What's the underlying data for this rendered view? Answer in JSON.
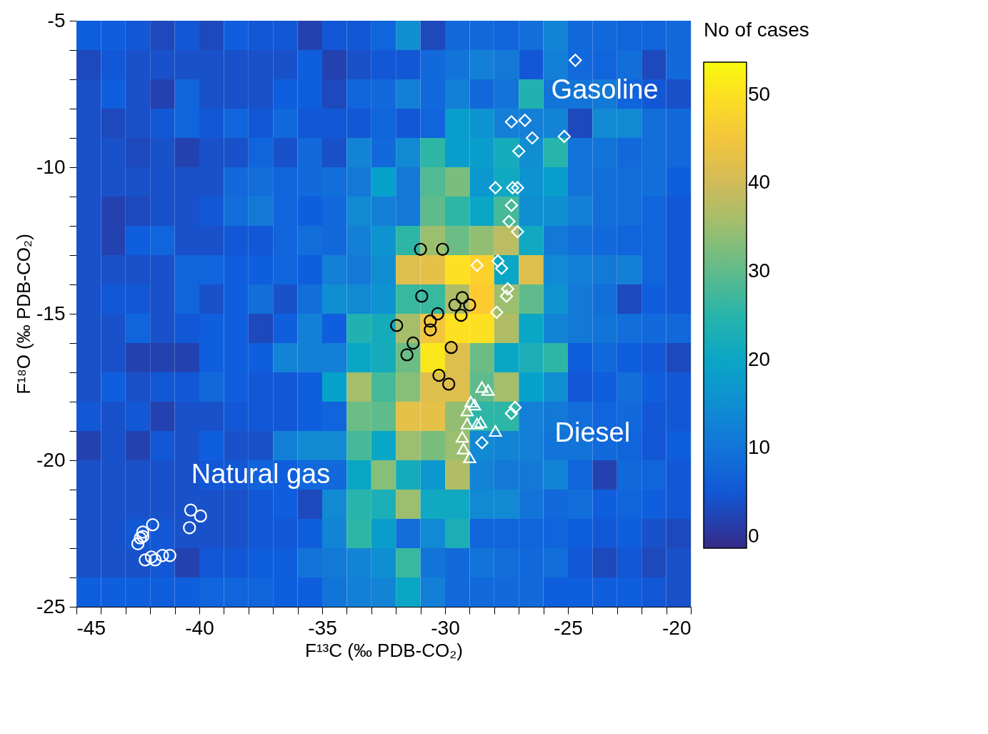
{
  "chart_data": {
    "type": "heatmap",
    "xlabel": "F¹³C (‰ PDB-CO₂)",
    "ylabel": "F¹⁸O (‰ PDB-CO₂)",
    "clabel": "No of cases",
    "xlim": [
      -45,
      -20
    ],
    "ylim": [
      -25,
      -5
    ],
    "xticks": [
      -45,
      {
        "value": -44,
        "label": null
      },
      {
        "value": -43,
        "label": null
      },
      {
        "value": -42,
        "label": null
      },
      {
        "value": -41,
        "label": null
      },
      -40,
      {
        "value": -39,
        "label": null
      },
      {
        "value": -38,
        "label": null
      },
      {
        "value": -37,
        "label": null
      },
      {
        "value": -36,
        "label": null
      },
      -35,
      {
        "value": -34,
        "label": null
      },
      {
        "value": -33,
        "label": null
      },
      {
        "value": -32,
        "label": null
      },
      {
        "value": -31,
        "label": null
      },
      -30,
      {
        "value": -29,
        "label": null
      },
      {
        "value": -28,
        "label": null
      },
      {
        "value": -27,
        "label": null
      },
      {
        "value": -26,
        "label": null
      },
      -25,
      {
        "value": -24,
        "label": null
      },
      {
        "value": -23,
        "label": null
      },
      {
        "value": -22,
        "label": null
      },
      {
        "value": -21,
        "label": null
      },
      -20
    ],
    "yticks": [
      -25,
      {
        "value": -24,
        "label": null
      },
      {
        "value": -23,
        "label": null
      },
      {
        "value": -22,
        "label": null
      },
      {
        "value": -21,
        "label": null
      },
      -20,
      {
        "value": -19,
        "label": null
      },
      {
        "value": -18,
        "label": null
      },
      {
        "value": -17,
        "label": null
      },
      {
        "value": -16,
        "label": null
      },
      -15,
      {
        "value": -14,
        "label": null
      },
      {
        "value": -13,
        "label": null
      },
      {
        "value": -12,
        "label": null
      },
      {
        "value": -11,
        "label": null
      },
      -10,
      {
        "value": -9,
        "label": null
      },
      {
        "value": -8,
        "label": null
      },
      {
        "value": -7,
        "label": null
      },
      {
        "value": -6,
        "label": null
      },
      -5
    ],
    "clim": [
      -1.3,
      53.7
    ],
    "cticks": [
      0,
      10,
      20,
      30,
      40,
      50
    ],
    "cells": [
      [
        6,
        6,
        5,
        3,
        5,
        3,
        6,
        5,
        5,
        2,
        5,
        5,
        7,
        15,
        3,
        8,
        8,
        7,
        9,
        13,
        8,
        8,
        7,
        7,
        8
      ],
      [
        3,
        5,
        4,
        4,
        4,
        4,
        4,
        4,
        4,
        6,
        2,
        4,
        5,
        5,
        8,
        10,
        12,
        11,
        5,
        12,
        8,
        7,
        9,
        3,
        8
      ],
      [
        4,
        6,
        4,
        2,
        7,
        4,
        4,
        4,
        6,
        6,
        3,
        7,
        8,
        12,
        8,
        12,
        8,
        10,
        24,
        10,
        10,
        11,
        7,
        5,
        4
      ],
      [
        4,
        3,
        4,
        5,
        7,
        5,
        7,
        5,
        8,
        5,
        5,
        5,
        7,
        5,
        7,
        18,
        16,
        12,
        12,
        13,
        3,
        14,
        14,
        9,
        8
      ],
      [
        4,
        4,
        3,
        4,
        2,
        4,
        4,
        7,
        4,
        8,
        4,
        13,
        8,
        14,
        26,
        18,
        18,
        22,
        15,
        25,
        10,
        10,
        8,
        9,
        8
      ],
      [
        4,
        4,
        4,
        4,
        4,
        4,
        8,
        9,
        7,
        8,
        9,
        11,
        19,
        11,
        29,
        32,
        17,
        21,
        16,
        18,
        10,
        9,
        9,
        9,
        6
      ],
      [
        4,
        2,
        3,
        4,
        4,
        5,
        9,
        11,
        7,
        6,
        8,
        14,
        12,
        11,
        30,
        26,
        20,
        28,
        15,
        15,
        12,
        9,
        9,
        7,
        5
      ],
      [
        4,
        2,
        6,
        7,
        4,
        4,
        5,
        5,
        7,
        9,
        8,
        12,
        16,
        26,
        35,
        31,
        34,
        38,
        21,
        11,
        9,
        8,
        7,
        7,
        5
      ],
      [
        4,
        4,
        4,
        4,
        7,
        7,
        6,
        6,
        7,
        6,
        12,
        11,
        15,
        42,
        43,
        50,
        48,
        20,
        42,
        14,
        12,
        11,
        12,
        7,
        5
      ],
      [
        4,
        5,
        5,
        4,
        7,
        4,
        6,
        9,
        4,
        9,
        15,
        14,
        16,
        27,
        27,
        37,
        47,
        35,
        30,
        16,
        11,
        9,
        3,
        6,
        5
      ],
      [
        4,
        4,
        7,
        4,
        5,
        6,
        6,
        3,
        6,
        12,
        6,
        24,
        22,
        36,
        45,
        50,
        50,
        37,
        20,
        13,
        11,
        10,
        9,
        8,
        8
      ],
      [
        4,
        4,
        2,
        2,
        2,
        6,
        6,
        6,
        13,
        12,
        12,
        20,
        22,
        31,
        51,
        42,
        31,
        20,
        23,
        26,
        6,
        8,
        6,
        5,
        3
      ],
      [
        4,
        6,
        4,
        5,
        5,
        8,
        6,
        5,
        5,
        6,
        19,
        36,
        28,
        33,
        42,
        42,
        30,
        36,
        19,
        15,
        5,
        6,
        9,
        6,
        5
      ],
      [
        5,
        4,
        5,
        2,
        4,
        4,
        5,
        5,
        5,
        6,
        7,
        31,
        30,
        43,
        43,
        34,
        26,
        26,
        12,
        11,
        9,
        7,
        8,
        5,
        5
      ],
      [
        2,
        4,
        2,
        5,
        4,
        6,
        4,
        4,
        12,
        14,
        14,
        28,
        20,
        35,
        32,
        35,
        14,
        13,
        12,
        10,
        10,
        8,
        7,
        5,
        6
      ],
      [
        4,
        4,
        4,
        4,
        4,
        5,
        5,
        7,
        6,
        8,
        8,
        20,
        33,
        22,
        17,
        37,
        13,
        11,
        11,
        13,
        7,
        2,
        8,
        7,
        5
      ],
      [
        4,
        4,
        4,
        4,
        4,
        4,
        4,
        5,
        6,
        3,
        14,
        25,
        23,
        35,
        21,
        21,
        14,
        14,
        10,
        8,
        9,
        6,
        7,
        6,
        5
      ],
      [
        4,
        4,
        5,
        5,
        4,
        4,
        4,
        5,
        5,
        6,
        13,
        26,
        18,
        9,
        14,
        23,
        7,
        7,
        7,
        7,
        6,
        5,
        6,
        4,
        3
      ],
      [
        4,
        4,
        4,
        5,
        2,
        5,
        5,
        6,
        6,
        10,
        11,
        13,
        15,
        27,
        10,
        8,
        10,
        9,
        8,
        9,
        5,
        3,
        5,
        3,
        4
      ],
      [
        6,
        6,
        6,
        6,
        6,
        7,
        7,
        7,
        6,
        6,
        10,
        12,
        13,
        20,
        12,
        8,
        8,
        8,
        8,
        6,
        6,
        6,
        6,
        5,
        4
      ]
    ],
    "series": [
      {
        "type": "scatter",
        "marker": "circle",
        "color": "#000000",
        "x": [
          -31.0,
          -30.1,
          -30.95,
          -31.97,
          -30.3,
          -30.6,
          -30.6,
          -29.6,
          -29.3,
          -29.0,
          -29.35,
          -31.3,
          -31.55,
          -29.75,
          -30.25,
          -29.85
        ],
        "values": [
          -12.8,
          -12.8,
          -14.4,
          -15.4,
          -15.0,
          -15.25,
          -15.55,
          -14.7,
          -14.45,
          -14.7,
          -15.05,
          -16.0,
          -16.4,
          -16.15,
          -17.1,
          -17.4
        ]
      },
      {
        "type": "scatter",
        "marker": "diamond",
        "color": "#ffffff",
        "x": [
          -24.7,
          -27.3,
          -26.75,
          -26.45,
          -27.0,
          -25.15,
          -27.95,
          -27.25,
          -27.05,
          -27.3,
          -27.4,
          -27.05,
          -28.7,
          -27.85,
          -27.7,
          -27.45,
          -27.5,
          -27.9,
          -27.15,
          -27.3,
          -28.5
        ],
        "values": [
          -6.35,
          -8.45,
          -8.4,
          -9.0,
          -9.45,
          -8.95,
          -10.7,
          -10.7,
          -10.7,
          -11.3,
          -11.85,
          -12.2,
          -13.35,
          -13.2,
          -13.45,
          -14.15,
          -14.4,
          -14.95,
          -18.2,
          -18.4,
          -19.4
        ]
      },
      {
        "type": "scatter",
        "marker": "triangle",
        "color": "#ffffff",
        "x": [
          -28.5,
          -28.25,
          -28.95,
          -28.8,
          -29.1,
          -29.1,
          -28.7,
          -28.55,
          -29.3,
          -27.95,
          -29.25,
          -29.0
        ],
        "values": [
          -17.5,
          -17.6,
          -18.0,
          -18.1,
          -18.3,
          -18.75,
          -18.75,
          -18.7,
          -19.2,
          -19.0,
          -19.6,
          -19.9
        ]
      },
      {
        "type": "scatter",
        "marker": "circle",
        "color": "#ffffff",
        "x": [
          -40.35,
          -39.95,
          -40.4,
          -41.9,
          -42.3,
          -42.4,
          -42.5,
          -42.3,
          -42.2,
          -41.8,
          -41.5,
          -41.2,
          -41.95
        ],
        "values": [
          -21.7,
          -21.9,
          -22.3,
          -22.2,
          -22.45,
          -22.65,
          -22.85,
          -22.6,
          -23.4,
          -23.4,
          -23.25,
          -23.25,
          -23.3
        ]
      }
    ],
    "annotations": [
      "Gasoline",
      "Diesel",
      "Natural gas"
    ]
  }
}
